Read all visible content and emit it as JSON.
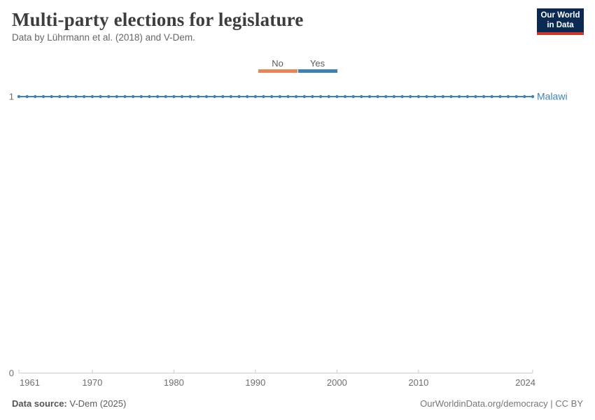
{
  "header": {
    "title": "Multi-party elections for legislature",
    "subtitle": "Data by Lührmann et al. (2018) and V-Dem.",
    "logo": {
      "line1": "Our World",
      "line2": "in Data",
      "bg": "#0b2a51",
      "accent": "#d2342a"
    }
  },
  "legend": {
    "items": [
      {
        "label": "No",
        "color": "#ee8455"
      },
      {
        "label": "Yes",
        "color": "#3d82b6"
      }
    ]
  },
  "chart_data": {
    "type": "line",
    "title": "Multi-party elections for legislature",
    "entity_label": "Malawi",
    "x": [
      1961,
      1962,
      1963,
      1964,
      1965,
      1966,
      1967,
      1968,
      1969,
      1970,
      1971,
      1972,
      1973,
      1974,
      1975,
      1976,
      1977,
      1978,
      1979,
      1980,
      1981,
      1982,
      1983,
      1984,
      1985,
      1986,
      1987,
      1988,
      1989,
      1990,
      1991,
      1992,
      1993,
      1994,
      1995,
      1996,
      1997,
      1998,
      1999,
      2000,
      2001,
      2002,
      2003,
      2004,
      2005,
      2006,
      2007,
      2008,
      2009,
      2010,
      2011,
      2012,
      2013,
      2014,
      2015,
      2016,
      2017,
      2018,
      2019,
      2020,
      2021,
      2022,
      2023,
      2024
    ],
    "series": [
      {
        "name": "Malawi",
        "color": "#3d82b6",
        "values": [
          1,
          1,
          1,
          1,
          1,
          1,
          1,
          1,
          1,
          1,
          1,
          1,
          1,
          1,
          1,
          1,
          1,
          1,
          1,
          1,
          1,
          1,
          1,
          1,
          1,
          1,
          1,
          1,
          1,
          1,
          1,
          1,
          1,
          1,
          1,
          1,
          1,
          1,
          1,
          1,
          1,
          1,
          1,
          1,
          1,
          1,
          1,
          1,
          1,
          1,
          1,
          1,
          1,
          1,
          1,
          1,
          1,
          1,
          1,
          1,
          1,
          1,
          1,
          1
        ]
      }
    ],
    "x_ticks": [
      1961,
      1970,
      1980,
      1990,
      2000,
      2010,
      2024
    ],
    "y_ticks": [
      0,
      1
    ],
    "xlim": [
      1961,
      2024
    ],
    "ylim": [
      0,
      1
    ],
    "grid": false,
    "legend_position": "top-center",
    "marker": "circle",
    "value_labels": {
      "0": "No",
      "1": "Yes"
    }
  },
  "axis_style": {
    "line_color": "#c9c9c9",
    "tick_label_color": "#6e6e6e"
  },
  "footer": {
    "source_label": "Data source:",
    "source_value": "V-Dem (2025)",
    "credit": "OurWorldinData.org/democracy | CC BY"
  }
}
